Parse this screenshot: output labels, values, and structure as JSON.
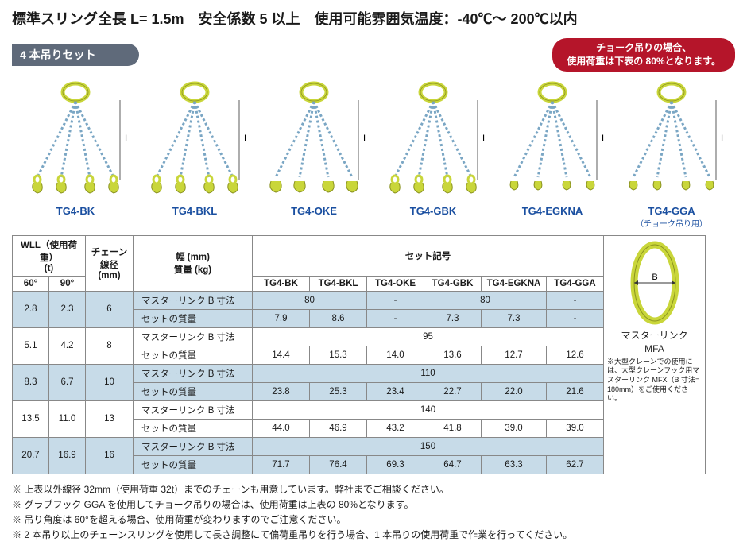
{
  "title": "標準スリング全長 L= 1.5m　安全係数 5 以上　使用可能雰囲気温度：-40℃～ 200℃以内",
  "section": "4 本吊りセット",
  "badge_line1": "チョーク吊りの場合、",
  "badge_line2": "使用荷重は下表の 80%となります。",
  "products": [
    {
      "label": "TG4-BK",
      "sub": ""
    },
    {
      "label": "TG4-BKL",
      "sub": ""
    },
    {
      "label": "TG4-OKE",
      "sub": ""
    },
    {
      "label": "TG4-GBK",
      "sub": ""
    },
    {
      "label": "TG4-EGKNA",
      "sub": ""
    },
    {
      "label": "TG4-GGA",
      "sub": "（チョーク吊り用）"
    }
  ],
  "hdr": {
    "wll": "WLL（使用荷重）\n(t)",
    "a60": "60°",
    "a90": "90°",
    "chain": "チェーン\n線径\n(mm)",
    "width": "幅 (mm)\n質量 (kg)",
    "set": "セット記号",
    "c1": "TG4-BK",
    "c2": "TG4-BKL",
    "c3": "TG4-OKE",
    "c4": "TG4-GBK",
    "c5": "TG4-EGKNA",
    "c6": "TG4-GGA"
  },
  "lbl_b": "マスターリンク B 寸法",
  "lbl_m": "セットの質量",
  "rows": [
    {
      "w60": "2.8",
      "w90": "2.3",
      "chain": "6",
      "b": [
        "80",
        "-",
        "80",
        "-"
      ],
      "bspan": [
        2,
        1,
        2,
        1
      ],
      "m": [
        "7.9",
        "8.6",
        "-",
        "7.3",
        "7.3",
        "-"
      ],
      "blue": true
    },
    {
      "w60": "5.1",
      "w90": "4.2",
      "chain": "8",
      "b": [
        "95"
      ],
      "bspan": [
        6
      ],
      "m": [
        "14.4",
        "15.3",
        "14.0",
        "13.6",
        "12.7",
        "12.6"
      ],
      "blue": false
    },
    {
      "w60": "8.3",
      "w90": "6.7",
      "chain": "10",
      "b": [
        "110"
      ],
      "bspan": [
        6
      ],
      "m": [
        "23.8",
        "25.3",
        "23.4",
        "22.7",
        "22.0",
        "21.6"
      ],
      "blue": true
    },
    {
      "w60": "13.5",
      "w90": "11.0",
      "chain": "13",
      "b": [
        "140"
      ],
      "bspan": [
        6
      ],
      "m": [
        "44.0",
        "46.9",
        "43.2",
        "41.8",
        "39.0",
        "39.0"
      ],
      "blue": false
    },
    {
      "w60": "20.7",
      "w90": "16.9",
      "chain": "16",
      "b": [
        "150"
      ],
      "bspan": [
        6
      ],
      "m": [
        "71.7",
        "76.4",
        "69.3",
        "64.7",
        "63.3",
        "62.7"
      ],
      "blue": true
    }
  ],
  "side": {
    "title1": "マスターリンク",
    "title2": "MFA",
    "b_label": "B",
    "note": "※大型クレーンでの使用には、大型クレーンフック用マスターリンク MFX（B 寸法= 180mm）をご使用ください。"
  },
  "notes": [
    "上表以外線径 32mm（使用荷重 32t）までのチェーンも用意しています。弊社までご相談ください。",
    "グラブフック GGA を使用してチョーク吊りの場合は、使用荷重は上表の 80%となります。",
    "吊り角度は 60°を超える場合、使用荷重が変わりますのでご注意ください。",
    "2 本吊り以上のチェーンスリングを使用して長さ調整にて偏荷重吊りを行う場合、1 本吊りの使用荷重で作業を行ってください。"
  ],
  "colors": {
    "ring": "#c9d63a",
    "chain": "#7aa6c4",
    "hook": "#c9d63a",
    "hook_stroke": "#8a9220"
  }
}
